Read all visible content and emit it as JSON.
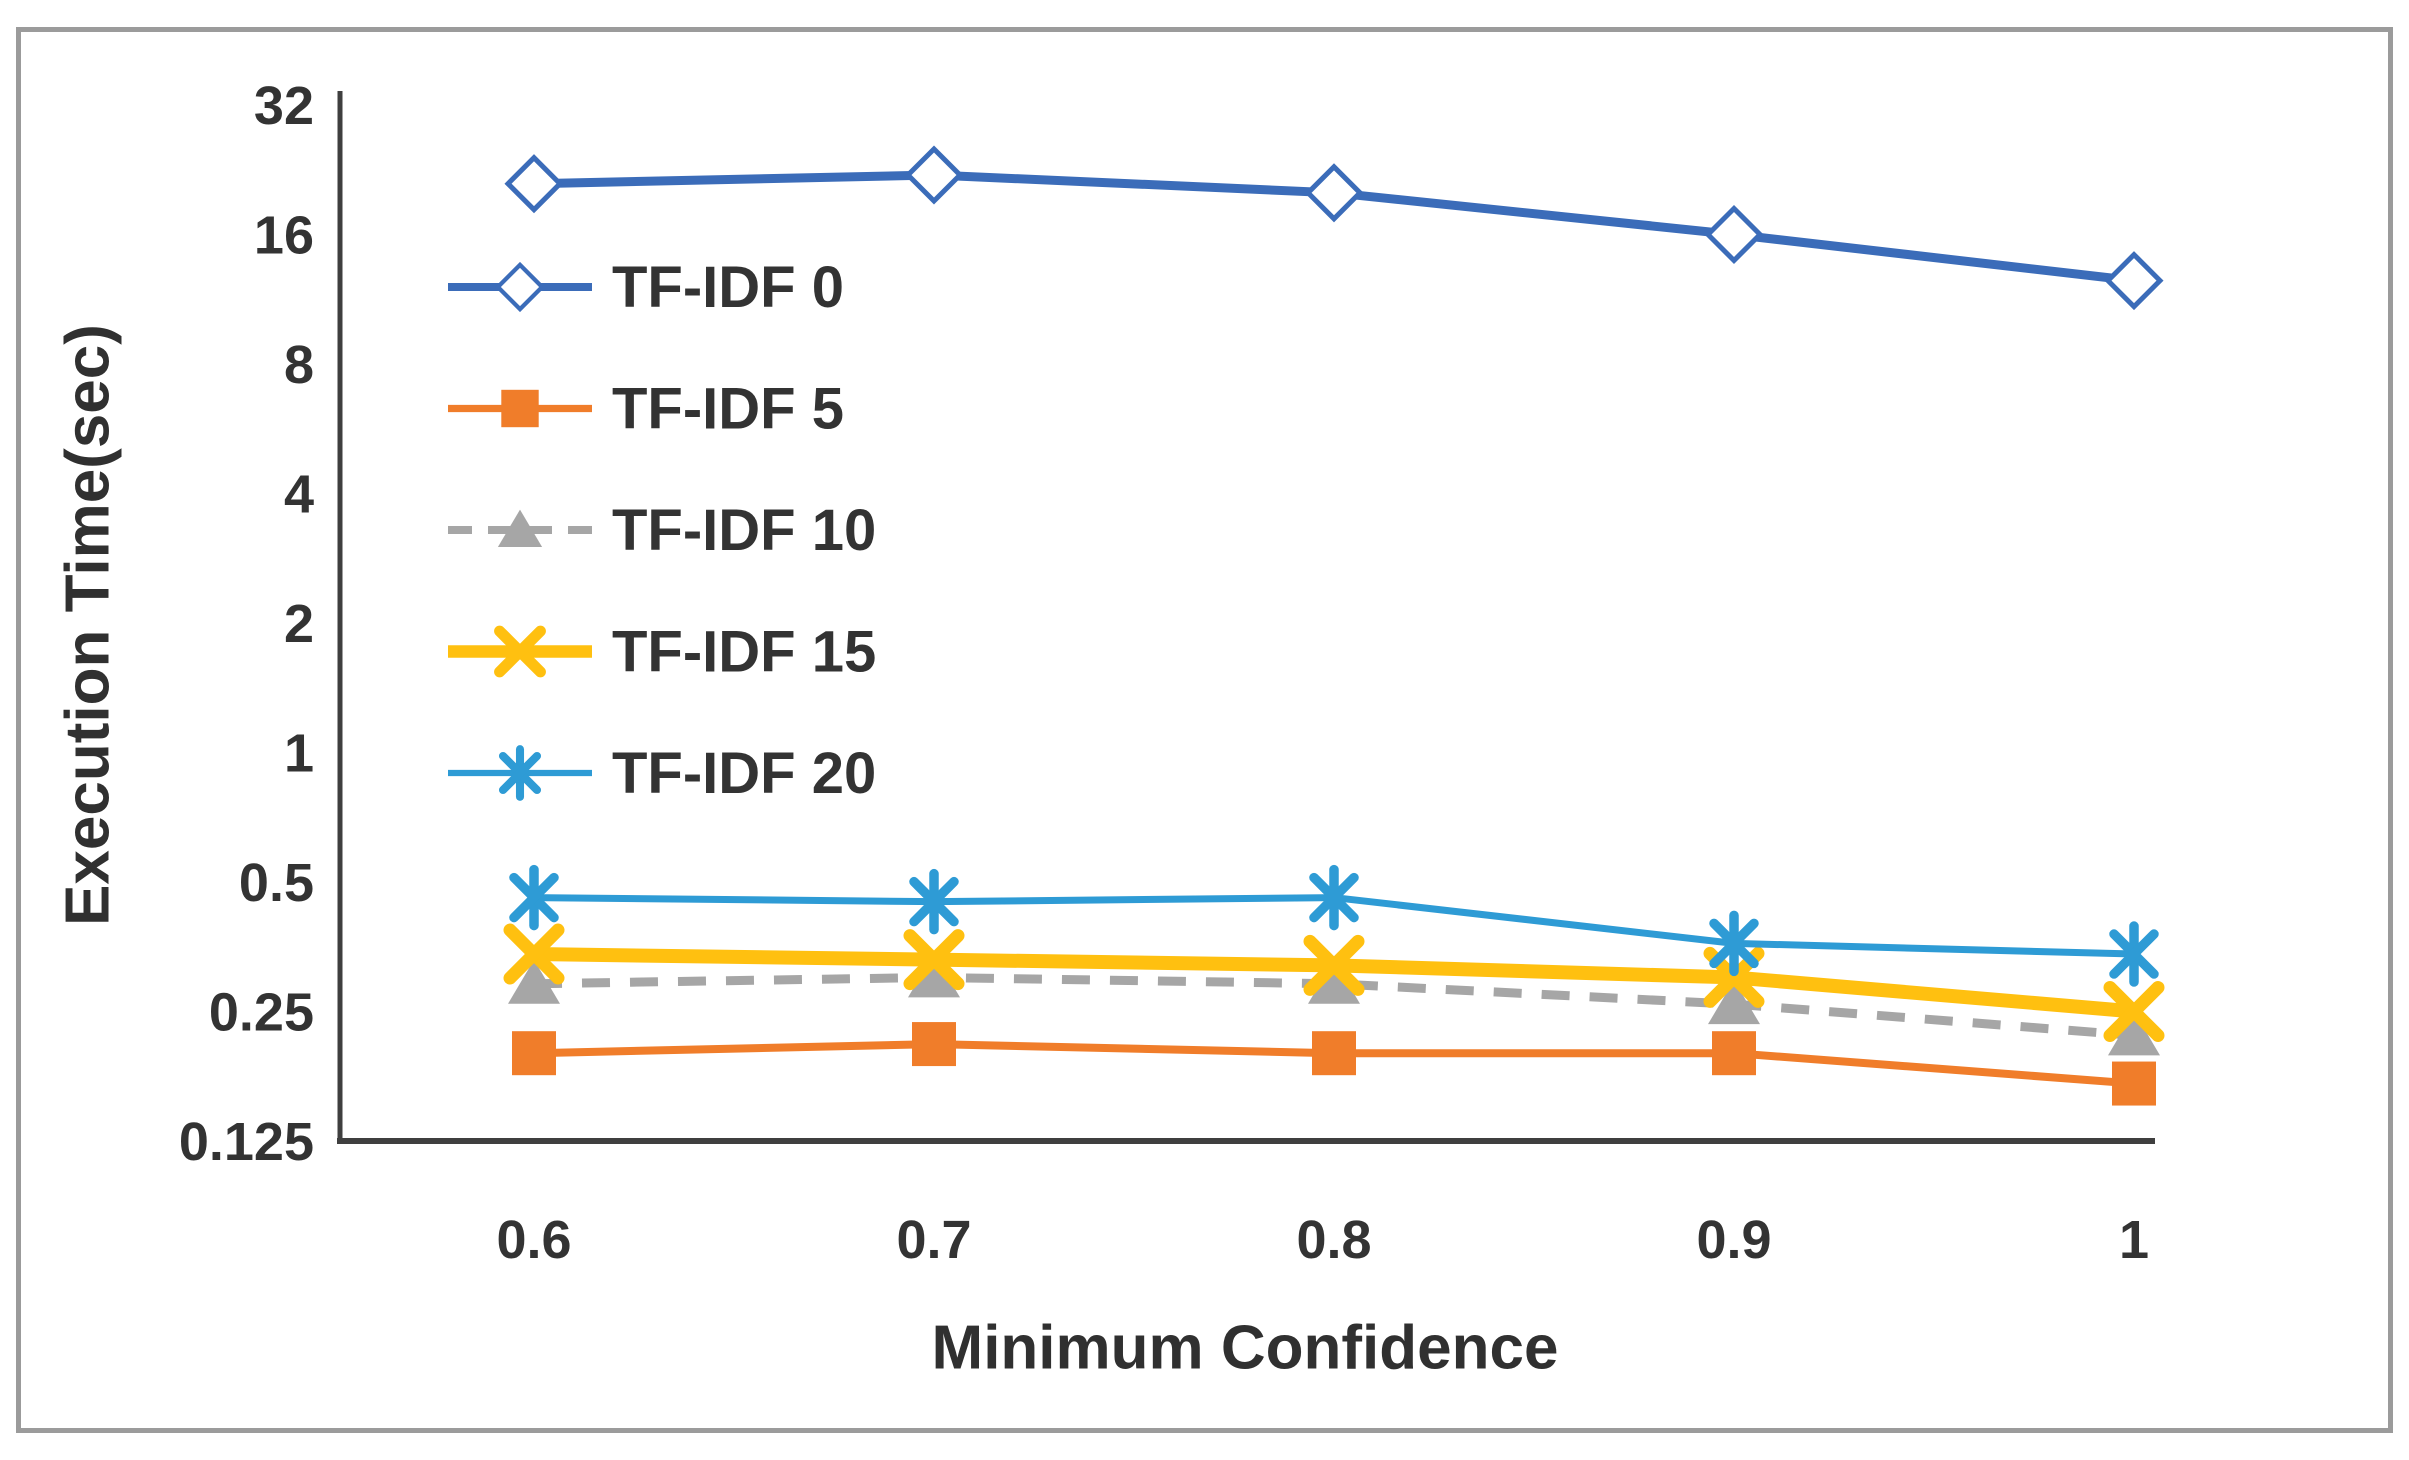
{
  "chart_data": {
    "type": "line",
    "title": "",
    "xlabel": "Minimum Confidence",
    "ylabel": "Execution Time(sec)",
    "x_values": [
      0.6,
      0.7,
      0.8,
      0.9,
      1.0
    ],
    "x_tick_labels": [
      "0.6",
      "0.7",
      "0.8",
      "0.9",
      "1"
    ],
    "y_scale": "log2",
    "y_domain": [
      0.125,
      32
    ],
    "y_ticks": [
      32,
      16,
      8,
      4,
      2,
      1,
      0.5,
      0.25,
      0.125
    ],
    "y_tick_labels": [
      "32",
      "16",
      "8",
      "4",
      "2",
      "1",
      "0.5",
      "0.25",
      "0.125"
    ],
    "grid": false,
    "legend_position": "inside-top-left",
    "series": [
      {
        "name": "TF-IDF 0",
        "color": "#3b6cb9",
        "marker": "diamond-open",
        "line_style": "solid",
        "line_width": 9,
        "values": [
          21,
          22,
          20,
          16,
          12.5
        ]
      },
      {
        "name": "TF-IDF 5",
        "color": "#f07d2a",
        "marker": "square-filled",
        "line_style": "solid",
        "line_width": 8,
        "values": [
          0.2,
          0.21,
          0.2,
          0.2,
          0.17
        ]
      },
      {
        "name": "TF-IDF 10",
        "color": "#a6a6a6",
        "marker": "triangle-filled",
        "line_style": "dashed",
        "line_width": 9,
        "values": [
          0.29,
          0.3,
          0.29,
          0.26,
          0.22
        ]
      },
      {
        "name": "TF-IDF 15",
        "color": "#ffc010",
        "marker": "x",
        "line_style": "solid",
        "line_width": 14,
        "values": [
          0.34,
          0.33,
          0.32,
          0.3,
          0.25
        ]
      },
      {
        "name": "TF-IDF 20",
        "color": "#2e9bd5",
        "marker": "asterisk",
        "line_style": "solid",
        "line_width": 7,
        "values": [
          0.46,
          0.45,
          0.46,
          0.36,
          0.34
        ]
      }
    ]
  },
  "frame": {
    "border_color": "#9b9b9b",
    "background": "#ffffff"
  },
  "axis": {
    "line_color": "#3f3f3f",
    "label_color": "#333333"
  }
}
